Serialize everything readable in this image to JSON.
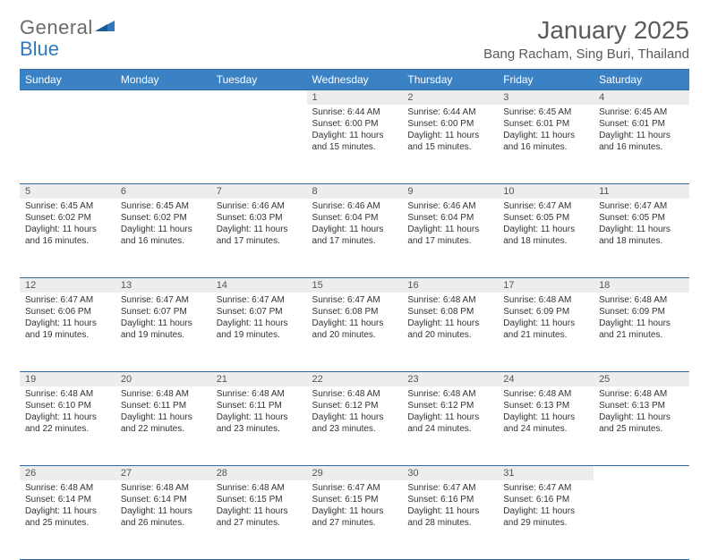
{
  "logo": {
    "word1": "General",
    "word2": "Blue"
  },
  "title": "January 2025",
  "location": "Bang Racham, Sing Buri, Thailand",
  "colors": {
    "header_bg": "#3b82c4",
    "header_border": "#2f6aa3",
    "daynum_bg": "#ededed",
    "text": "#333333",
    "title_text": "#5a5a5a",
    "logo_gray": "#6a6a6a",
    "logo_blue": "#2f78bd"
  },
  "weekdays": [
    "Sunday",
    "Monday",
    "Tuesday",
    "Wednesday",
    "Thursday",
    "Friday",
    "Saturday"
  ],
  "weeks": [
    [
      null,
      null,
      null,
      {
        "n": "1",
        "sr": "6:44 AM",
        "ss": "6:00 PM",
        "dl": "11 hours and 15 minutes."
      },
      {
        "n": "2",
        "sr": "6:44 AM",
        "ss": "6:00 PM",
        "dl": "11 hours and 15 minutes."
      },
      {
        "n": "3",
        "sr": "6:45 AM",
        "ss": "6:01 PM",
        "dl": "11 hours and 16 minutes."
      },
      {
        "n": "4",
        "sr": "6:45 AM",
        "ss": "6:01 PM",
        "dl": "11 hours and 16 minutes."
      }
    ],
    [
      {
        "n": "5",
        "sr": "6:45 AM",
        "ss": "6:02 PM",
        "dl": "11 hours and 16 minutes."
      },
      {
        "n": "6",
        "sr": "6:45 AM",
        "ss": "6:02 PM",
        "dl": "11 hours and 16 minutes."
      },
      {
        "n": "7",
        "sr": "6:46 AM",
        "ss": "6:03 PM",
        "dl": "11 hours and 17 minutes."
      },
      {
        "n": "8",
        "sr": "6:46 AM",
        "ss": "6:04 PM",
        "dl": "11 hours and 17 minutes."
      },
      {
        "n": "9",
        "sr": "6:46 AM",
        "ss": "6:04 PM",
        "dl": "11 hours and 17 minutes."
      },
      {
        "n": "10",
        "sr": "6:47 AM",
        "ss": "6:05 PM",
        "dl": "11 hours and 18 minutes."
      },
      {
        "n": "11",
        "sr": "6:47 AM",
        "ss": "6:05 PM",
        "dl": "11 hours and 18 minutes."
      }
    ],
    [
      {
        "n": "12",
        "sr": "6:47 AM",
        "ss": "6:06 PM",
        "dl": "11 hours and 19 minutes."
      },
      {
        "n": "13",
        "sr": "6:47 AM",
        "ss": "6:07 PM",
        "dl": "11 hours and 19 minutes."
      },
      {
        "n": "14",
        "sr": "6:47 AM",
        "ss": "6:07 PM",
        "dl": "11 hours and 19 minutes."
      },
      {
        "n": "15",
        "sr": "6:47 AM",
        "ss": "6:08 PM",
        "dl": "11 hours and 20 minutes."
      },
      {
        "n": "16",
        "sr": "6:48 AM",
        "ss": "6:08 PM",
        "dl": "11 hours and 20 minutes."
      },
      {
        "n": "17",
        "sr": "6:48 AM",
        "ss": "6:09 PM",
        "dl": "11 hours and 21 minutes."
      },
      {
        "n": "18",
        "sr": "6:48 AM",
        "ss": "6:09 PM",
        "dl": "11 hours and 21 minutes."
      }
    ],
    [
      {
        "n": "19",
        "sr": "6:48 AM",
        "ss": "6:10 PM",
        "dl": "11 hours and 22 minutes."
      },
      {
        "n": "20",
        "sr": "6:48 AM",
        "ss": "6:11 PM",
        "dl": "11 hours and 22 minutes."
      },
      {
        "n": "21",
        "sr": "6:48 AM",
        "ss": "6:11 PM",
        "dl": "11 hours and 23 minutes."
      },
      {
        "n": "22",
        "sr": "6:48 AM",
        "ss": "6:12 PM",
        "dl": "11 hours and 23 minutes."
      },
      {
        "n": "23",
        "sr": "6:48 AM",
        "ss": "6:12 PM",
        "dl": "11 hours and 24 minutes."
      },
      {
        "n": "24",
        "sr": "6:48 AM",
        "ss": "6:13 PM",
        "dl": "11 hours and 24 minutes."
      },
      {
        "n": "25",
        "sr": "6:48 AM",
        "ss": "6:13 PM",
        "dl": "11 hours and 25 minutes."
      }
    ],
    [
      {
        "n": "26",
        "sr": "6:48 AM",
        "ss": "6:14 PM",
        "dl": "11 hours and 25 minutes."
      },
      {
        "n": "27",
        "sr": "6:48 AM",
        "ss": "6:14 PM",
        "dl": "11 hours and 26 minutes."
      },
      {
        "n": "28",
        "sr": "6:48 AM",
        "ss": "6:15 PM",
        "dl": "11 hours and 27 minutes."
      },
      {
        "n": "29",
        "sr": "6:47 AM",
        "ss": "6:15 PM",
        "dl": "11 hours and 27 minutes."
      },
      {
        "n": "30",
        "sr": "6:47 AM",
        "ss": "6:16 PM",
        "dl": "11 hours and 28 minutes."
      },
      {
        "n": "31",
        "sr": "6:47 AM",
        "ss": "6:16 PM",
        "dl": "11 hours and 29 minutes."
      },
      null
    ]
  ],
  "labels": {
    "sunrise": "Sunrise:",
    "sunset": "Sunset:",
    "daylight": "Daylight:"
  }
}
